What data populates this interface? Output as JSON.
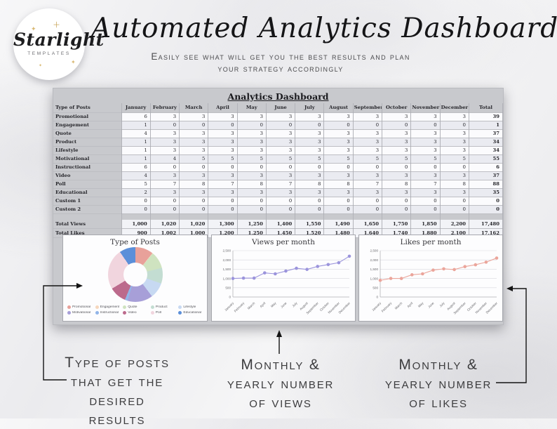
{
  "header": {
    "logo": {
      "brand": "Starlight",
      "sub": "TEMPLATES"
    },
    "title": "Automated Analytics Dashboard",
    "subtitle_line1": "Easily see what will get you the best results and plan",
    "subtitle_line2": "your strategy accordingly"
  },
  "spreadsheet": {
    "title": "Analytics Dashboard",
    "table": {
      "row_header": "Type of Posts",
      "total_label": "Total",
      "months": [
        "January",
        "February",
        "March",
        "April",
        "May",
        "June",
        "July",
        "August",
        "September",
        "October",
        "November",
        "December"
      ],
      "rows": [
        {
          "label": "Promotional",
          "values": [
            6,
            3,
            3,
            3,
            3,
            3,
            3,
            3,
            3,
            3,
            3,
            3
          ],
          "total": 39
        },
        {
          "label": "Engagement",
          "values": [
            1,
            0,
            0,
            0,
            0,
            0,
            0,
            0,
            0,
            0,
            0,
            0
          ],
          "total": 1
        },
        {
          "label": "Quote",
          "values": [
            4,
            3,
            3,
            3,
            3,
            3,
            3,
            3,
            3,
            3,
            3,
            3
          ],
          "total": 37
        },
        {
          "label": "Product",
          "values": [
            1,
            3,
            3,
            3,
            3,
            3,
            3,
            3,
            3,
            3,
            3,
            3
          ],
          "total": 34
        },
        {
          "label": "Lifestyle",
          "values": [
            1,
            3,
            3,
            3,
            3,
            3,
            3,
            3,
            3,
            3,
            3,
            3
          ],
          "total": 34
        },
        {
          "label": "Motivational",
          "values": [
            1,
            4,
            5,
            5,
            5,
            5,
            5,
            5,
            5,
            5,
            5,
            5
          ],
          "total": 55
        },
        {
          "label": "Instructional",
          "values": [
            6,
            0,
            0,
            0,
            0,
            0,
            0,
            0,
            0,
            0,
            0,
            0
          ],
          "total": 6
        },
        {
          "label": "Video",
          "values": [
            4,
            3,
            3,
            3,
            3,
            3,
            3,
            3,
            3,
            3,
            3,
            3
          ],
          "total": 37
        },
        {
          "label": "Poll",
          "values": [
            5,
            7,
            8,
            7,
            8,
            7,
            8,
            8,
            7,
            8,
            7,
            8
          ],
          "total": 88
        },
        {
          "label": "Educational",
          "values": [
            2,
            3,
            3,
            3,
            3,
            3,
            3,
            3,
            3,
            3,
            3,
            3
          ],
          "total": 35
        },
        {
          "label": "Custom 1",
          "values": [
            0,
            0,
            0,
            0,
            0,
            0,
            0,
            0,
            0,
            0,
            0,
            0
          ],
          "total": 0
        },
        {
          "label": "Custom 2",
          "values": [
            0,
            0,
            0,
            0,
            0,
            0,
            0,
            0,
            0,
            0,
            0,
            0
          ],
          "total": 0
        }
      ],
      "summary_rows": [
        {
          "label": "Total Views",
          "values": [
            "1,000",
            "1,020",
            "1,020",
            "1,300",
            "1,250",
            "1,400",
            "1,550",
            "1,490",
            "1,650",
            "1,750",
            "1,850",
            "2,200"
          ],
          "total": "17,480"
        },
        {
          "label": "Total Likes",
          "values": [
            "900",
            "1,002",
            "1,000",
            "1,200",
            "1,250",
            "1,450",
            "1,520",
            "1,480",
            "1,640",
            "1,740",
            "1,880",
            "2,100"
          ],
          "total": "17,162"
        }
      ]
    }
  },
  "chart_data": [
    {
      "type": "pie",
      "donut": true,
      "title": "Type of Posts",
      "labels": [
        "Promotional",
        "Engagement",
        "Quote",
        "Product",
        "Lifestyle",
        "Motivational",
        "Instructional",
        "Video",
        "Poll",
        "Educational"
      ],
      "values": [
        39,
        1,
        37,
        34,
        34,
        55,
        6,
        37,
        88,
        35
      ],
      "colors": [
        "#e8a19a",
        "#f6d7bd",
        "#cfe3c0",
        "#c3ddd2",
        "#c7d9f2",
        "#a79fd8",
        "#92b5e8",
        "#bc6a8c",
        "#f1d5de",
        "#5b8fd9"
      ],
      "legend_position": "bottom"
    },
    {
      "type": "line",
      "title": "Views per month",
      "x": [
        "January",
        "February",
        "March",
        "April",
        "May",
        "June",
        "July",
        "August",
        "September",
        "October",
        "November",
        "December"
      ],
      "values": [
        1000,
        1020,
        1020,
        1300,
        1250,
        1400,
        1550,
        1490,
        1650,
        1750,
        1850,
        2200
      ],
      "color": "#9b94dc",
      "ylim": [
        0,
        2500
      ],
      "ytick_labels": [
        "0",
        "500",
        "1,000",
        "1,500",
        "2,000",
        "2,500"
      ],
      "grid": true
    },
    {
      "type": "line",
      "title": "Likes per month",
      "x": [
        "January",
        "February",
        "March",
        "April",
        "May",
        "June",
        "July",
        "August",
        "September",
        "October",
        "November",
        "December"
      ],
      "values": [
        900,
        1002,
        1000,
        1200,
        1250,
        1450,
        1520,
        1480,
        1640,
        1740,
        1880,
        2100
      ],
      "color": "#eba59b",
      "ylim": [
        0,
        2500
      ],
      "ytick_labels": [
        "0",
        "500",
        "1,000",
        "1,500",
        "2,000",
        "2,500"
      ],
      "grid": true
    }
  ],
  "annotations": [
    {
      "lines": [
        "Type of posts",
        "that get the",
        "desired results"
      ]
    },
    {
      "lines": [
        "Monthly &",
        "yearly number",
        "of views"
      ]
    },
    {
      "lines": [
        "Monthly &",
        "yearly number",
        "of likes"
      ]
    }
  ]
}
